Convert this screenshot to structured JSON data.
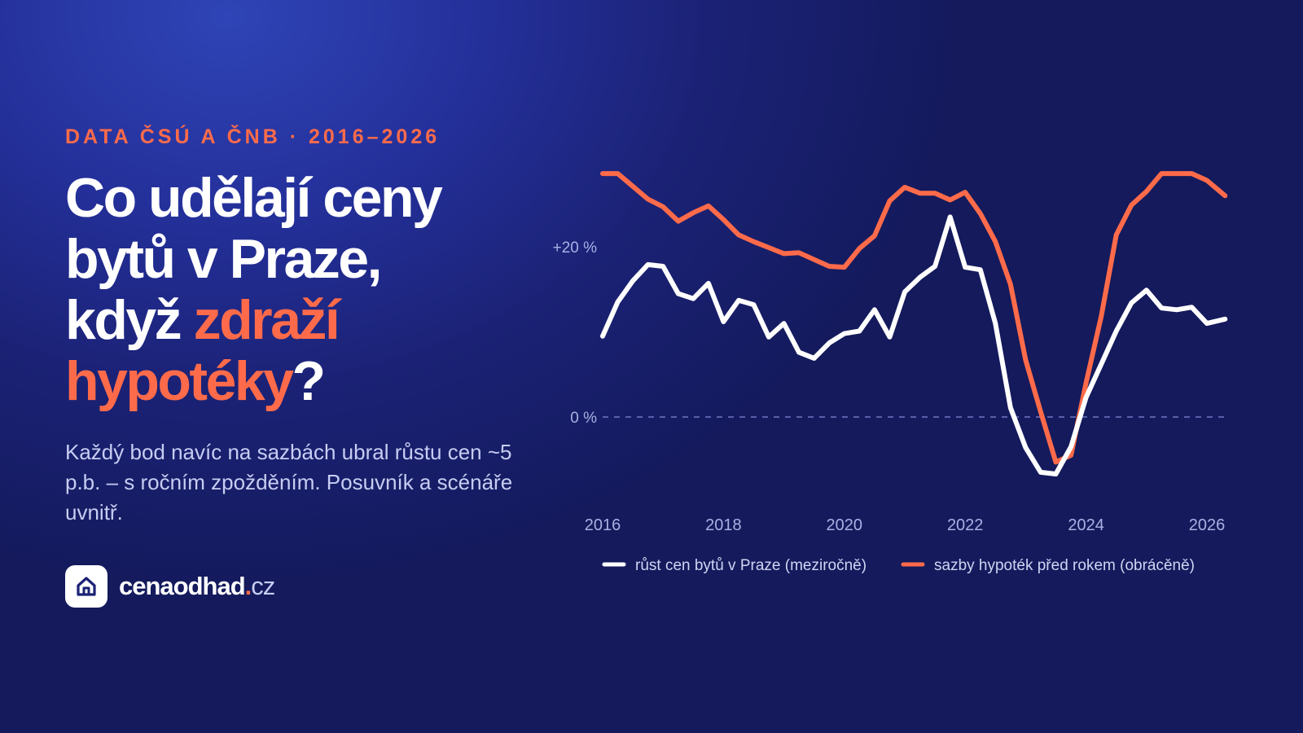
{
  "kicker": "DATA ČSÚ A ČNB · 2016–2026",
  "headline": {
    "line1": "Co udělají ceny",
    "line2": "bytů v Praze,",
    "line3_plain": "když ",
    "line3_accent": "zdraží",
    "line4_accent": "hypotéky",
    "line4_plain": "?"
  },
  "subtitle": "Každý bod navíc na sazbách ubral růstu cen ~5 p.b. – s ročním zpožděním. Posuvník a scénáře uvnitř.",
  "brand": {
    "icon": "house-icon",
    "name": "cenaodhad",
    "dot": ".",
    "tld": "cz"
  },
  "colors": {
    "accent": "#ff6b4a",
    "white": "#ffffff",
    "muted": "#c7cdf2",
    "axis_text": "#a9b1e3"
  },
  "chart_data": {
    "type": "line",
    "title": "",
    "xlabel": "",
    "ylabel": "",
    "x_ticks": [
      "2016",
      "2018",
      "2020",
      "2022",
      "2024",
      "2026"
    ],
    "y_ticks": [
      {
        "value": 20,
        "label": "+20 %"
      },
      {
        "value": 0,
        "label": "0 %"
      }
    ],
    "zero_line": "dashed",
    "ylim": [
      -8,
      30
    ],
    "xlim": [
      2016,
      2026.3
    ],
    "grid": false,
    "legend": "bottom",
    "series": [
      {
        "name": "růst cen bytů v Praze (meziročně)",
        "color": "#ffffff",
        "points": [
          [
            2016.0,
            9.5
          ],
          [
            2016.25,
            13.5
          ],
          [
            2016.5,
            16
          ],
          [
            2016.75,
            17.9
          ],
          [
            2017.0,
            17.7
          ],
          [
            2017.25,
            14.5
          ],
          [
            2017.5,
            13.9
          ],
          [
            2017.75,
            15.7
          ],
          [
            2018.0,
            11.2
          ],
          [
            2018.25,
            13.7
          ],
          [
            2018.5,
            13.2
          ],
          [
            2018.75,
            9.4
          ],
          [
            2019.0,
            11.0
          ],
          [
            2019.25,
            7.6
          ],
          [
            2019.5,
            6.9
          ],
          [
            2019.75,
            8.7
          ],
          [
            2020.0,
            9.8
          ],
          [
            2020.25,
            10.1
          ],
          [
            2020.5,
            12.6
          ],
          [
            2020.75,
            9.4
          ],
          [
            2021.0,
            14.7
          ],
          [
            2021.25,
            16.4
          ],
          [
            2021.5,
            17.7
          ],
          [
            2021.75,
            23.5
          ],
          [
            2022.0,
            17.6
          ],
          [
            2022.25,
            17.3
          ],
          [
            2022.5,
            11.0
          ],
          [
            2022.75,
            1.1
          ],
          [
            2023.0,
            -3.6
          ],
          [
            2023.25,
            -6.5
          ],
          [
            2023.5,
            -6.7
          ],
          [
            2023.75,
            -3.5
          ],
          [
            2024.0,
            2.3
          ],
          [
            2024.25,
            6.2
          ],
          [
            2024.5,
            10.1
          ],
          [
            2024.75,
            13.4
          ],
          [
            2025.0,
            14.9
          ],
          [
            2025.25,
            12.8
          ],
          [
            2025.5,
            12.6
          ],
          [
            2025.75,
            12.9
          ],
          [
            2026.0,
            11.0
          ],
          [
            2026.3,
            11.5
          ]
        ]
      },
      {
        "name": "sazby hypoték před rokem (obrácěně)",
        "color": "#ff6b4a",
        "points": [
          [
            2016.0,
            28.6
          ],
          [
            2016.25,
            28.6
          ],
          [
            2016.5,
            27.1
          ],
          [
            2016.75,
            25.6
          ],
          [
            2017.0,
            24.7
          ],
          [
            2017.25,
            23.0
          ],
          [
            2017.5,
            24.0
          ],
          [
            2017.75,
            24.8
          ],
          [
            2018.0,
            23.2
          ],
          [
            2018.25,
            21.4
          ],
          [
            2018.5,
            20.6
          ],
          [
            2018.75,
            19.9
          ],
          [
            2019.0,
            19.2
          ],
          [
            2019.25,
            19.3
          ],
          [
            2019.5,
            18.5
          ],
          [
            2019.75,
            17.7
          ],
          [
            2020.0,
            17.6
          ],
          [
            2020.25,
            19.8
          ],
          [
            2020.5,
            21.3
          ],
          [
            2020.75,
            25.4
          ],
          [
            2021.0,
            27.0
          ],
          [
            2021.25,
            26.3
          ],
          [
            2021.5,
            26.3
          ],
          [
            2021.75,
            25.5
          ],
          [
            2022.0,
            26.4
          ],
          [
            2022.25,
            23.9
          ],
          [
            2022.5,
            20.6
          ],
          [
            2022.75,
            15.6
          ],
          [
            2023.0,
            6.7
          ],
          [
            2023.25,
            0.6
          ],
          [
            2023.5,
            -5.3
          ],
          [
            2023.75,
            -4.5
          ],
          [
            2024.0,
            4.0
          ],
          [
            2024.25,
            11.8
          ],
          [
            2024.5,
            21.4
          ],
          [
            2024.75,
            24.9
          ],
          [
            2025.0,
            26.5
          ],
          [
            2025.25,
            28.6
          ],
          [
            2025.5,
            28.6
          ],
          [
            2025.75,
            28.6
          ],
          [
            2026.0,
            27.8
          ],
          [
            2026.3,
            26.0
          ]
        ]
      }
    ]
  }
}
